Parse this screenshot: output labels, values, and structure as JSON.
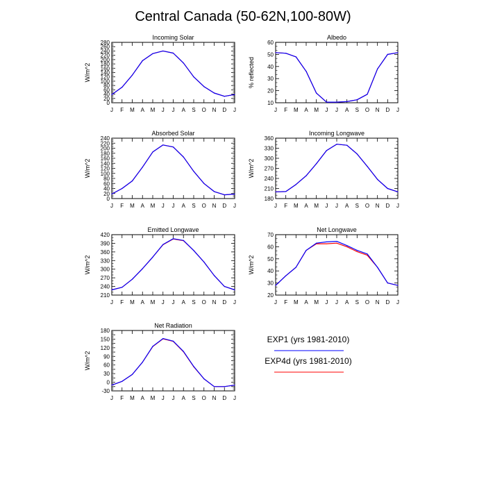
{
  "figure_title": "Central Canada (50-62N,100-80W)",
  "legend": [
    {
      "label": "EXP1 (yrs 1981-2010)",
      "color": "#0000ff"
    },
    {
      "label": "EXP4d (yrs 1981-2010)",
      "color": "#ff0000"
    }
  ],
  "chart_data": [
    {
      "type": "line",
      "title": "Incoming Solar",
      "ylabel": "W/m^2",
      "categories": [
        "J",
        "F",
        "M",
        "A",
        "M",
        "J",
        "J",
        "A",
        "S",
        "O",
        "N",
        "D",
        "J"
      ],
      "ylim": [
        0,
        280
      ],
      "yticks": [
        0,
        20,
        40,
        60,
        80,
        100,
        120,
        140,
        160,
        180,
        200,
        220,
        240,
        260,
        280
      ],
      "series": [
        {
          "name": "EXP1 (yrs 1981-2010)",
          "color": "#0000ff",
          "values": [
            38,
            72,
            128,
            195,
            228,
            240,
            230,
            184,
            120,
            75,
            45,
            30,
            38
          ]
        },
        {
          "name": "EXP4d (yrs 1981-2010)",
          "color": "#ff0000",
          "values": [
            38,
            72,
            128,
            195,
            228,
            240,
            230,
            184,
            120,
            75,
            45,
            30,
            38
          ]
        }
      ]
    },
    {
      "type": "line",
      "title": "Albedo",
      "ylabel": "% reflected",
      "categories": [
        "J",
        "F",
        "M",
        "A",
        "M",
        "J",
        "J",
        "A",
        "S",
        "O",
        "N",
        "D",
        "J"
      ],
      "ylim": [
        10,
        60
      ],
      "yticks": [
        10,
        20,
        30,
        40,
        50,
        60
      ],
      "series": [
        {
          "name": "EXP1 (yrs 1981-2010)",
          "color": "#0000ff",
          "values": [
            51.5,
            51,
            48,
            36,
            18,
            10.5,
            10.5,
            11,
            12.5,
            17,
            38,
            50,
            51.5
          ]
        },
        {
          "name": "EXP4d (yrs 1981-2010)",
          "color": "#ff0000",
          "values": [
            51.5,
            51,
            48,
            36,
            18,
            10.5,
            10.5,
            11,
            12.5,
            17,
            38,
            50,
            51.5
          ]
        }
      ]
    },
    {
      "type": "line",
      "title": "Absorbed Solar",
      "ylabel": "W/m^2",
      "categories": [
        "J",
        "F",
        "M",
        "A",
        "M",
        "J",
        "J",
        "A",
        "S",
        "O",
        "N",
        "D",
        "J"
      ],
      "ylim": [
        0,
        240
      ],
      "yticks": [
        0,
        20,
        40,
        60,
        80,
        100,
        120,
        140,
        160,
        180,
        200,
        220,
        240
      ],
      "series": [
        {
          "name": "EXP1 (yrs 1981-2010)",
          "color": "#0000ff",
          "values": [
            18,
            40,
            70,
            125,
            185,
            213,
            205,
            165,
            108,
            60,
            28,
            15,
            18
          ]
        },
        {
          "name": "EXP4d (yrs 1981-2010)",
          "color": "#ff0000",
          "values": [
            18,
            40,
            70,
            125,
            185,
            213,
            205,
            165,
            108,
            60,
            28,
            15,
            18
          ]
        }
      ]
    },
    {
      "type": "line",
      "title": "Incoming Longwave",
      "ylabel": "W/m^2",
      "categories": [
        "J",
        "F",
        "M",
        "A",
        "M",
        "J",
        "J",
        "A",
        "S",
        "O",
        "N",
        "D",
        "J"
      ],
      "ylim": [
        180,
        360
      ],
      "yticks": [
        180,
        210,
        240,
        270,
        300,
        330,
        360
      ],
      "series": [
        {
          "name": "EXP1 (yrs 1981-2010)",
          "color": "#0000ff",
          "values": [
            200,
            201,
            222,
            248,
            284,
            323,
            342,
            339,
            313,
            276,
            237,
            210,
            200
          ]
        },
        {
          "name": "EXP4d (yrs 1981-2010)",
          "color": "#ff0000",
          "values": [
            200,
            201,
            222,
            248,
            284,
            323,
            342,
            339,
            313,
            276,
            237,
            210,
            200
          ]
        }
      ]
    },
    {
      "type": "line",
      "title": "Emitted Longwave",
      "ylabel": "W/m^2",
      "categories": [
        "J",
        "F",
        "M",
        "A",
        "M",
        "J",
        "J",
        "A",
        "S",
        "O",
        "N",
        "D",
        "J"
      ],
      "ylim": [
        210,
        420
      ],
      "yticks": [
        210,
        240,
        270,
        300,
        330,
        360,
        390,
        420
      ],
      "series": [
        {
          "name": "EXP1 (yrs 1981-2010)",
          "color": "#0000ff",
          "values": [
            228,
            237,
            265,
            302,
            342,
            386,
            406,
            400,
            365,
            325,
            278,
            240,
            228
          ]
        },
        {
          "name": "EXP4d (yrs 1981-2010)",
          "color": "#ff0000",
          "values": [
            228,
            237,
            265,
            302,
            342,
            385,
            405,
            399,
            365,
            325,
            278,
            240,
            228
          ]
        }
      ]
    },
    {
      "type": "line",
      "title": "Net Longwave",
      "ylabel": "W/m^2",
      "categories": [
        "J",
        "F",
        "M",
        "A",
        "M",
        "J",
        "J",
        "A",
        "S",
        "O",
        "N",
        "D",
        "J"
      ],
      "ylim": [
        20,
        70
      ],
      "yticks": [
        20,
        30,
        40,
        50,
        60,
        70
      ],
      "series": [
        {
          "name": "EXP1 (yrs 1981-2010)",
          "color": "#0000ff",
          "values": [
            28,
            36,
            43,
            57,
            63,
            64,
            64.5,
            61,
            57,
            54,
            43,
            30,
            28
          ]
        },
        {
          "name": "EXP4d (yrs 1981-2010)",
          "color": "#ff0000",
          "values": [
            28,
            36,
            43,
            57,
            62.5,
            62.5,
            63,
            60,
            56,
            53,
            43,
            30,
            28
          ]
        }
      ]
    },
    {
      "type": "line",
      "title": "Net Radiation",
      "ylabel": "W/m^2",
      "categories": [
        "J",
        "F",
        "M",
        "A",
        "M",
        "J",
        "J",
        "A",
        "S",
        "O",
        "N",
        "D",
        "J"
      ],
      "ylim": [
        -30,
        180
      ],
      "yticks": [
        -30,
        -15,
        0,
        15,
        30,
        45,
        60,
        75,
        90,
        105,
        120,
        135,
        150,
        165,
        180
      ],
      "yticklabels": [
        "-30",
        "",
        "0",
        "",
        "30",
        "",
        "60",
        "",
        "90",
        "",
        "120",
        "",
        "150",
        "",
        "180"
      ],
      "series": [
        {
          "name": "EXP1 (yrs 1981-2010)",
          "color": "#0000ff",
          "values": [
            -10,
            3,
            27,
            70,
            125,
            152,
            143,
            107,
            55,
            12,
            -15,
            -15,
            -10
          ]
        },
        {
          "name": "EXP4d (yrs 1981-2010)",
          "color": "#ff0000",
          "values": [
            -10,
            3,
            27,
            70,
            124,
            151,
            142,
            106,
            54,
            12,
            -15,
            -15,
            -10
          ]
        }
      ]
    }
  ]
}
